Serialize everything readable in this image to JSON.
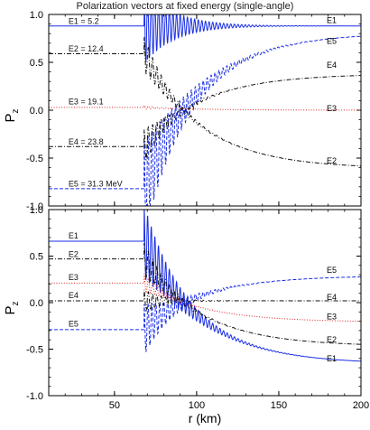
{
  "figure": {
    "title": "Polarization vectors at fixed energy (single-angle)"
  },
  "chart_data": [
    {
      "type": "line",
      "panel": "top",
      "title": "Polarization vectors at fixed energy (single-angle)",
      "xlabel": "",
      "ylabel": "P_z",
      "ylabel_main": "P",
      "ylabel_sub": "z",
      "xlim": [
        10,
        200
      ],
      "ylim": [
        -1.0,
        1.0
      ],
      "x_ticks": [
        50,
        100,
        150,
        200
      ],
      "x_tick_labels": [],
      "y_ticks": [
        -1.0,
        -0.5,
        0.0,
        0.5,
        1.0
      ],
      "y_tick_labels": [
        "-1.0",
        "-0.5",
        "0.0",
        "0.5",
        "1.0"
      ],
      "grid": false,
      "legend": "none",
      "series": [
        {
          "name": "E1",
          "color": "#1a2ee6",
          "dash": "solid",
          "p0": 0.88,
          "onset": 68,
          "pend": 0.88,
          "amp0": 0.4,
          "decay": 18,
          "period": 2.2,
          "right_label": "E1",
          "right_label_y": 0.95
        },
        {
          "name": "E5",
          "color": "#1a2ee6",
          "dash": "dashed",
          "p0": -0.82,
          "onset": 68,
          "pend": 0.81,
          "amp0": 0.5,
          "decay": 20,
          "period": 2.4,
          "right_label": "E5",
          "right_label_y": 0.73
        },
        {
          "name": "E4",
          "color": "#111111",
          "dash": "dashdot",
          "p0": -0.38,
          "onset": 68,
          "pend": 0.38,
          "amp0": 0.18,
          "decay": 14,
          "period": 2.6,
          "right_label": "E4",
          "right_label_y": 0.48
        },
        {
          "name": "E3",
          "color": "#e02020",
          "dash": "dotted",
          "p0": 0.03,
          "onset": 68,
          "pend": 0.0,
          "amp0": 0.02,
          "decay": 10,
          "period": 2.6,
          "right_label": "E3",
          "right_label_y": 0.03
        },
        {
          "name": "E2",
          "color": "#111111",
          "dash": "dashdot",
          "p0": 0.59,
          "onset": 68,
          "pend": -0.61,
          "amp0": 0.18,
          "decay": 14,
          "period": 2.6,
          "right_label": "E2",
          "right_label_y": -0.52
        }
      ],
      "annotations": [
        {
          "text": "E1 = 5.2",
          "x": 22,
          "y": 0.93,
          "color": "#111111"
        },
        {
          "text": "E2 = 12.4",
          "x": 22,
          "y": 0.64,
          "color": "#111111"
        },
        {
          "text": "E3 = 19.1",
          "x": 22,
          "y": 0.09,
          "color": "#111111"
        },
        {
          "text": "E4 = 23.8",
          "x": 22,
          "y": -0.33,
          "color": "#111111"
        },
        {
          "text": "E5 = 31.3 MeV",
          "x": 22,
          "y": -0.77,
          "color": "#111111"
        }
      ]
    },
    {
      "type": "line",
      "panel": "bottom",
      "xlabel": "r (km)",
      "ylabel": "P_z",
      "ylabel_main": "P",
      "ylabel_sub": "z",
      "xlim": [
        10,
        200
      ],
      "ylim": [
        -1.0,
        1.0
      ],
      "x_ticks": [
        50,
        100,
        150,
        200
      ],
      "x_tick_labels": [
        "50",
        "100",
        "150",
        "200"
      ],
      "y_ticks": [
        -1.0,
        -0.5,
        0.0,
        0.5,
        1.0
      ],
      "y_tick_labels": [
        "-1.0",
        "-0.5",
        "0.0",
        "0.5",
        "1.0"
      ],
      "grid": false,
      "legend": "none",
      "series": [
        {
          "name": "E1",
          "color": "#1a2ee6",
          "dash": "solid",
          "p0": 0.66,
          "onset": 68,
          "pend": -0.66,
          "amp0": 0.4,
          "decay": 18,
          "period": 2.2,
          "right_label": "E1",
          "right_label_y": -0.59
        },
        {
          "name": "E5",
          "color": "#1a2ee6",
          "dash": "dashed",
          "p0": -0.29,
          "onset": 68,
          "pend": 0.29,
          "amp0": 0.28,
          "decay": 16,
          "period": 2.4,
          "right_label": "E5",
          "right_label_y": 0.36
        },
        {
          "name": "E4",
          "color": "#111111",
          "dash": "dashdot",
          "p0": 0.02,
          "onset": 68,
          "pend": 0.02,
          "amp0": 0.12,
          "decay": 12,
          "period": 2.6,
          "right_label": "E4",
          "right_label_y": 0.07
        },
        {
          "name": "E3",
          "color": "#e02020",
          "dash": "dotted",
          "p0": 0.21,
          "onset": 68,
          "pend": -0.21,
          "amp0": 0.1,
          "decay": 12,
          "period": 2.6,
          "right_label": "E3",
          "right_label_y": -0.14
        },
        {
          "name": "E2",
          "color": "#111111",
          "dash": "dashdot",
          "p0": 0.47,
          "onset": 68,
          "pend": -0.47,
          "amp0": 0.18,
          "decay": 14,
          "period": 2.6,
          "right_label": "E2",
          "right_label_y": -0.39
        }
      ],
      "annotations": [
        {
          "text": "E1",
          "x": 22,
          "y": 0.72,
          "color": "#111111"
        },
        {
          "text": "E2",
          "x": 22,
          "y": 0.52,
          "color": "#111111"
        },
        {
          "text": "E3",
          "x": 22,
          "y": 0.27,
          "color": "#111111"
        },
        {
          "text": "E4",
          "x": 22,
          "y": 0.08,
          "color": "#111111"
        },
        {
          "text": "E5",
          "x": 22,
          "y": -0.23,
          "color": "#111111"
        }
      ]
    }
  ]
}
